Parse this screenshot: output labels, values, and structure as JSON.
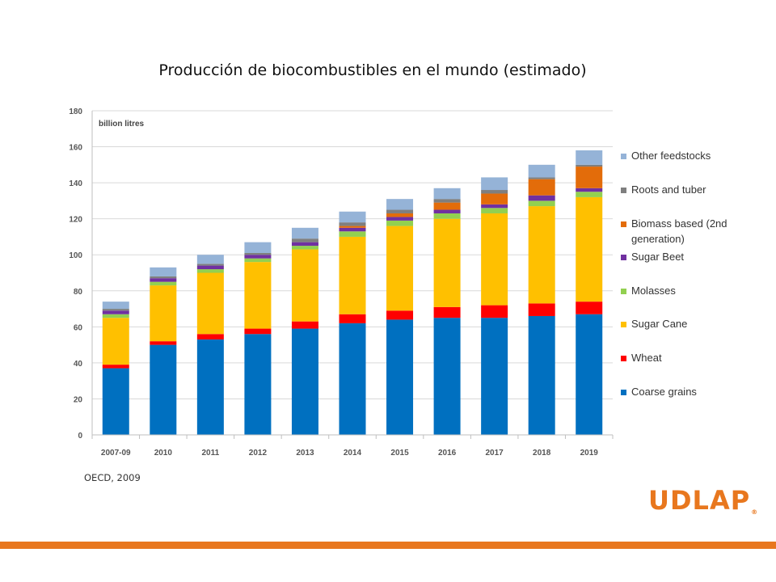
{
  "slide": {
    "title": "Producción de biocombustibles en el mundo (estimado)",
    "source": "OECD, 2009",
    "logo_text": "UDLAP",
    "logo_mark": "®"
  },
  "colors": {
    "accent": "#e8771e",
    "coarse_grains": "#0070c0",
    "wheat": "#ff0000",
    "sugar_cane": "#ffc000",
    "molasses": "#92d050",
    "sugar_beet": "#7030a0",
    "biomass": "#e36c0a",
    "roots_tuber": "#7f7f7f",
    "other": "#95b3d7"
  },
  "chart_data": {
    "type": "bar",
    "stacked": true,
    "unit_label": "billion litres",
    "categories": [
      "2007-09",
      "2010",
      "2011",
      "2012",
      "2013",
      "2014",
      "2015",
      "2016",
      "2017",
      "2018",
      "2019"
    ],
    "y_ticks": [
      0,
      20,
      40,
      60,
      80,
      100,
      120,
      140,
      160,
      180
    ],
    "ylim": [
      0,
      180
    ],
    "grid": true,
    "legend_position": "right",
    "series": [
      {
        "name": "Coarse grains",
        "color": "#0070c0",
        "values": [
          37,
          50,
          53,
          56,
          59,
          62,
          64,
          65,
          65,
          66,
          67
        ]
      },
      {
        "name": "Wheat",
        "color": "#ff0000",
        "values": [
          2,
          2,
          3,
          3,
          4,
          5,
          5,
          6,
          7,
          7,
          7
        ]
      },
      {
        "name": "Sugar Cane",
        "color": "#ffc000",
        "values": [
          26,
          31,
          34,
          37,
          40,
          43,
          47,
          49,
          51,
          54,
          58
        ]
      },
      {
        "name": "Molasses",
        "color": "#92d050",
        "values": [
          2,
          2,
          2,
          2,
          2,
          3,
          3,
          3,
          3,
          3,
          3
        ]
      },
      {
        "name": "Sugar Beet",
        "color": "#7030a0",
        "values": [
          2,
          2,
          2,
          2,
          2,
          2,
          2,
          2,
          2,
          3,
          2
        ]
      },
      {
        "name": "Biomass based (2nd generation)",
        "color": "#e36c0a",
        "values": [
          0,
          0,
          0,
          0,
          0,
          1,
          2,
          4,
          6,
          9,
          12
        ]
      },
      {
        "name": "Roots and tuber",
        "color": "#7f7f7f",
        "values": [
          1,
          1,
          1,
          1,
          2,
          2,
          2,
          2,
          2,
          1,
          1
        ]
      },
      {
        "name": "Other feedstocks",
        "color": "#95b3d7",
        "values": [
          4,
          5,
          5,
          6,
          6,
          6,
          6,
          6,
          7,
          7,
          8
        ]
      }
    ],
    "legend_order": [
      "Other feedstocks",
      "Roots and tuber",
      "Biomass based (2nd generation)",
      "Sugar Beet",
      "Molasses",
      "Sugar Cane",
      "Wheat",
      "Coarse grains"
    ]
  }
}
